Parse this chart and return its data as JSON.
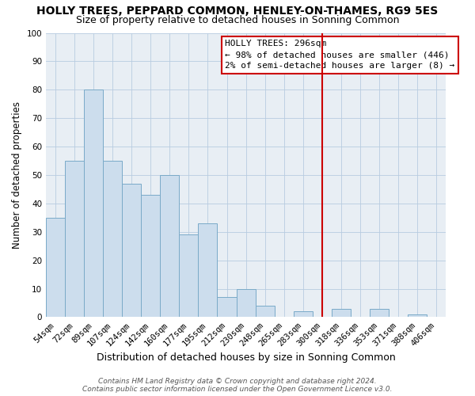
{
  "title": "HOLLY TREES, PEPPARD COMMON, HENLEY-ON-THAMES, RG9 5ES",
  "subtitle": "Size of property relative to detached houses in Sonning Common",
  "xlabel": "Distribution of detached houses by size in Sonning Common",
  "ylabel": "Number of detached properties",
  "bin_labels": [
    "54sqm",
    "72sqm",
    "89sqm",
    "107sqm",
    "124sqm",
    "142sqm",
    "160sqm",
    "177sqm",
    "195sqm",
    "212sqm",
    "230sqm",
    "248sqm",
    "265sqm",
    "283sqm",
    "300sqm",
    "318sqm",
    "336sqm",
    "353sqm",
    "371sqm",
    "388sqm",
    "406sqm"
  ],
  "bar_heights": [
    35,
    55,
    80,
    55,
    47,
    43,
    50,
    29,
    33,
    7,
    10,
    4,
    0,
    2,
    0,
    3,
    0,
    3,
    0,
    1,
    0
  ],
  "bar_color": "#ccdded",
  "bar_edge_color": "#7aaac8",
  "vline_x_idx": 14,
  "vline_color": "#cc0000",
  "ylim": [
    0,
    100
  ],
  "yticks": [
    0,
    10,
    20,
    30,
    40,
    50,
    60,
    70,
    80,
    90,
    100
  ],
  "annotation_title": "HOLLY TREES: 296sqm",
  "annotation_line1": "← 98% of detached houses are smaller (446)",
  "annotation_line2": "2% of semi-detached houses are larger (8) →",
  "footer_line1": "Contains HM Land Registry data © Crown copyright and database right 2024.",
  "footer_line2": "Contains public sector information licensed under the Open Government Licence v3.0.",
  "title_fontsize": 10,
  "subtitle_fontsize": 9,
  "xlabel_fontsize": 9,
  "ylabel_fontsize": 8.5,
  "tick_fontsize": 7.5,
  "annotation_fontsize": 8,
  "footer_fontsize": 6.5,
  "bg_color": "#e8eef4"
}
